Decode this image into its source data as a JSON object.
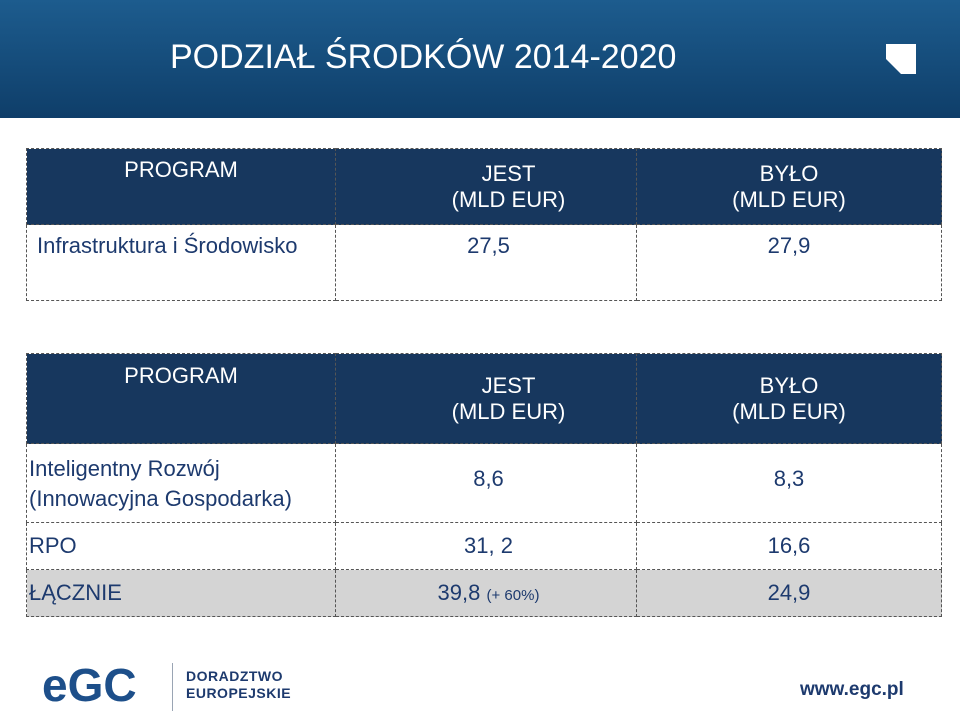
{
  "header": {
    "title": "PODZIAŁ ŚRODKÓW 2014-2020"
  },
  "table1": {
    "col1": "PROGRAM",
    "col2_line1": "JEST",
    "col2_line2": "(MLD EUR)",
    "col3_line1": "BYŁO",
    "col3_line2": "(MLD EUR)",
    "rows": [
      {
        "program": "Infrastruktura i Środowisko",
        "jest": "27,5",
        "bylo": "27,9"
      }
    ]
  },
  "table2": {
    "col1": "PROGRAM",
    "col2_line1": "JEST",
    "col2_line2": "(MLD EUR)",
    "col3_line1": "BYŁO",
    "col3_line2": "(MLD EUR)",
    "rows": [
      {
        "program_line1": "Inteligentny Rozwój",
        "program_line2": "(Innowacyjna Gospodarka)",
        "jest": "8,6",
        "bylo": "8,3"
      },
      {
        "program": "RPO",
        "jest": "31, 2",
        "bylo": "16,6"
      },
      {
        "program": "ŁĄCZNIE",
        "jest": "39,8",
        "jest_note": "(+ 60%)",
        "bylo": "24,9"
      }
    ]
  },
  "footer": {
    "logo_text": "eGC",
    "subtitle_line1": "DORADZTWO",
    "subtitle_line2": "EUROPEJSKIE",
    "url": "www.egc.pl"
  },
  "colors": {
    "header_blue": "#144a78",
    "table_head": "#17375e",
    "text_blue": "#1d3a6e",
    "total_row": "#d4d4d4"
  }
}
